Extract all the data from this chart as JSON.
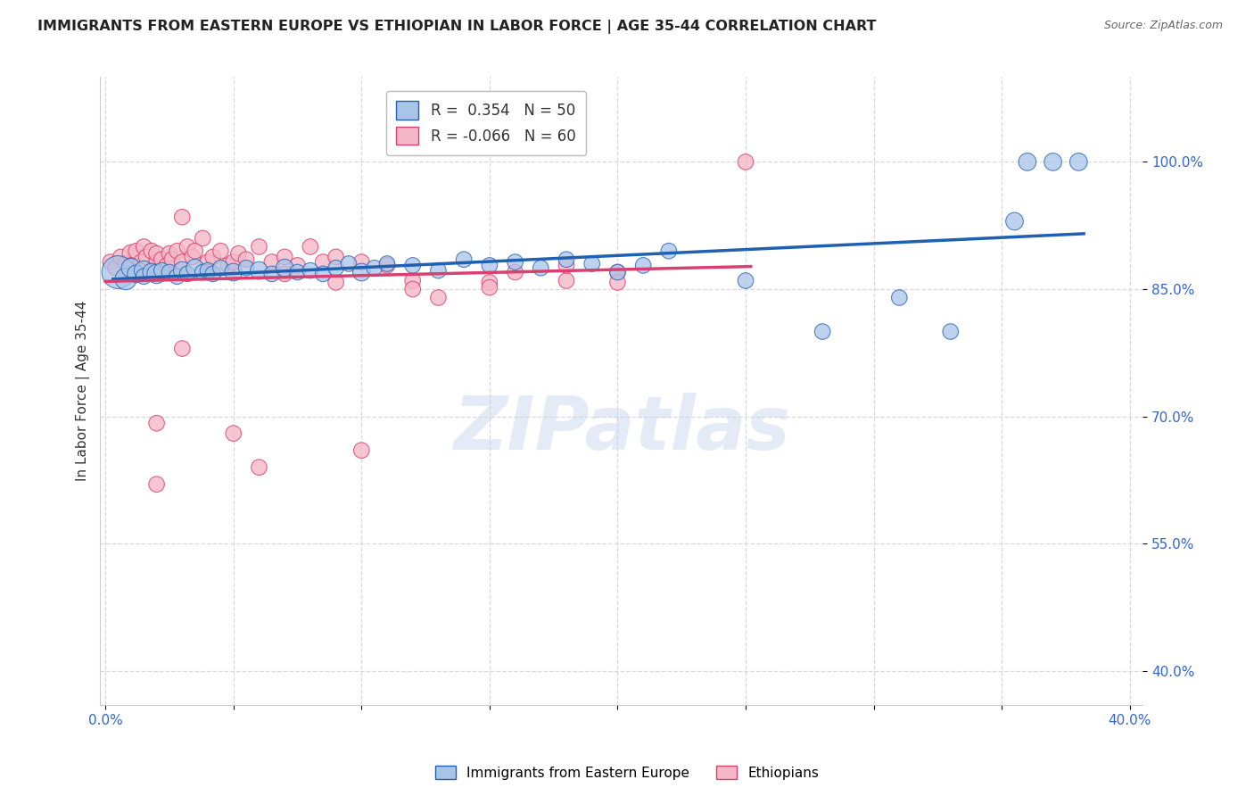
{
  "title": "IMMIGRANTS FROM EASTERN EUROPE VS ETHIOPIAN IN LABOR FORCE | AGE 35-44 CORRELATION CHART",
  "source": "Source: ZipAtlas.com",
  "ylabel": "In Labor Force | Age 35-44",
  "xlim": [
    -0.002,
    0.405
  ],
  "ylim": [
    0.36,
    1.1
  ],
  "blue_R": 0.354,
  "blue_N": 50,
  "pink_R": -0.066,
  "pink_N": 60,
  "blue_color": "#aac4e8",
  "pink_color": "#f5b8c8",
  "blue_line_color": "#2060b0",
  "pink_line_color": "#d84070",
  "watermark": "ZIPatlas",
  "blue_scatter_x": [
    0.005,
    0.008,
    0.01,
    0.012,
    0.015,
    0.015,
    0.018,
    0.02,
    0.022,
    0.025,
    0.028,
    0.03,
    0.032,
    0.035,
    0.038,
    0.04,
    0.042,
    0.045,
    0.05,
    0.055,
    0.06,
    0.065,
    0.07,
    0.075,
    0.08,
    0.085,
    0.09,
    0.095,
    0.1,
    0.105,
    0.11,
    0.12,
    0.13,
    0.14,
    0.15,
    0.16,
    0.17,
    0.18,
    0.19,
    0.2,
    0.21,
    0.22,
    0.25,
    0.28,
    0.31,
    0.33,
    0.355,
    0.36,
    0.37,
    0.38
  ],
  "blue_scatter_y": [
    0.87,
    0.862,
    0.875,
    0.868,
    0.872,
    0.865,
    0.87,
    0.868,
    0.872,
    0.87,
    0.865,
    0.872,
    0.868,
    0.875,
    0.87,
    0.872,
    0.868,
    0.875,
    0.87,
    0.875,
    0.872,
    0.868,
    0.875,
    0.87,
    0.872,
    0.868,
    0.875,
    0.88,
    0.87,
    0.875,
    0.88,
    0.878,
    0.872,
    0.885,
    0.878,
    0.882,
    0.875,
    0.885,
    0.88,
    0.87,
    0.878,
    0.895,
    0.86,
    0.8,
    0.84,
    0.8,
    0.93,
    1.0,
    1.0,
    1.0
  ],
  "blue_scatter_s": [
    350,
    150,
    120,
    100,
    120,
    80,
    100,
    120,
    80,
    80,
    80,
    100,
    80,
    100,
    80,
    80,
    80,
    80,
    100,
    80,
    100,
    80,
    100,
    80,
    80,
    80,
    80,
    80,
    100,
    80,
    80,
    80,
    80,
    80,
    80,
    80,
    80,
    80,
    80,
    80,
    80,
    80,
    80,
    80,
    80,
    80,
    100,
    100,
    100,
    100
  ],
  "pink_scatter_x": [
    0.002,
    0.004,
    0.006,
    0.008,
    0.01,
    0.01,
    0.012,
    0.014,
    0.015,
    0.016,
    0.018,
    0.02,
    0.02,
    0.022,
    0.024,
    0.025,
    0.026,
    0.028,
    0.03,
    0.03,
    0.032,
    0.034,
    0.035,
    0.038,
    0.04,
    0.042,
    0.045,
    0.048,
    0.05,
    0.052,
    0.055,
    0.06,
    0.065,
    0.07,
    0.075,
    0.08,
    0.085,
    0.09,
    0.1,
    0.11,
    0.12,
    0.13,
    0.15,
    0.16,
    0.18,
    0.2,
    0.02,
    0.05,
    0.09,
    0.12,
    0.03,
    0.07,
    0.15,
    0.2,
    0.1,
    0.04,
    0.02,
    0.06,
    0.18,
    0.25
  ],
  "pink_scatter_y": [
    0.882,
    0.875,
    0.888,
    0.88,
    0.892,
    0.878,
    0.895,
    0.882,
    0.9,
    0.888,
    0.895,
    0.882,
    0.892,
    0.885,
    0.878,
    0.892,
    0.885,
    0.895,
    0.935,
    0.882,
    0.9,
    0.888,
    0.895,
    0.91,
    0.882,
    0.888,
    0.895,
    0.878,
    0.882,
    0.892,
    0.885,
    0.9,
    0.882,
    0.888,
    0.878,
    0.9,
    0.882,
    0.888,
    0.882,
    0.878,
    0.86,
    0.84,
    0.858,
    0.87,
    0.86,
    0.87,
    0.692,
    0.68,
    0.858,
    0.85,
    0.78,
    0.868,
    0.852,
    0.858,
    0.66,
    0.87,
    0.62,
    0.64,
    0.878,
    1.0
  ],
  "pink_scatter_s": [
    80,
    80,
    80,
    80,
    100,
    80,
    80,
    80,
    80,
    80,
    80,
    80,
    80,
    80,
    80,
    80,
    80,
    80,
    80,
    80,
    80,
    80,
    80,
    80,
    80,
    80,
    80,
    80,
    80,
    80,
    80,
    80,
    80,
    80,
    80,
    80,
    80,
    80,
    80,
    80,
    80,
    80,
    80,
    80,
    80,
    80,
    80,
    80,
    80,
    80,
    80,
    80,
    80,
    80,
    80,
    80,
    80,
    80,
    80,
    80
  ],
  "legend_label_blue": "Immigrants from Eastern Europe",
  "legend_label_pink": "Ethiopians",
  "background_color": "#ffffff",
  "grid_color": "#d8d8d8",
  "ytick_positions": [
    1.0,
    0.85,
    0.7,
    0.55,
    0.4
  ],
  "ytick_labels": [
    "100.0%",
    "85.0%",
    "70.0%",
    "55.0%",
    "40.0%"
  ],
  "xtick_positions": [
    0.0,
    0.05,
    0.1,
    0.15,
    0.2,
    0.25,
    0.3,
    0.35,
    0.4
  ],
  "xtick_labels_show": [
    "0.0%",
    "",
    "",
    "",
    "",
    "",
    "",
    "",
    "40.0%"
  ]
}
